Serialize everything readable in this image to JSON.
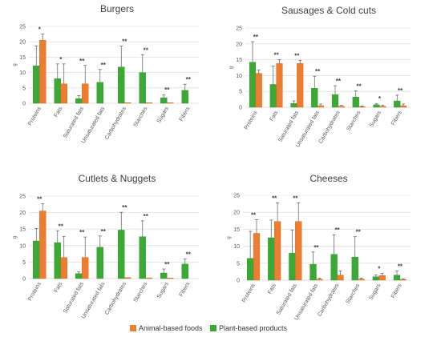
{
  "colors": {
    "animal": "#ed7d31",
    "plant": "#3aaa35",
    "grid": "#d9d9d9",
    "axis": "#bfbfbf",
    "error": "#595959"
  },
  "legend": {
    "animal_label": "Animal-based foods",
    "plant_label": "Plant-based products"
  },
  "chart_data": [
    {
      "type": "bar",
      "title": "Burgers",
      "ylabel": "g",
      "ylim": [
        0,
        25
      ],
      "yticks": [
        0,
        5,
        10,
        15,
        20,
        25
      ],
      "categories": [
        "Proteins",
        "Fats",
        "Saturated fats",
        "Unsaturated fats",
        "Carbohydrates",
        "Starches",
        "Sugars",
        "Fibers"
      ],
      "series": [
        {
          "name": "Plant-based products",
          "values": [
            12.2,
            8.0,
            1.5,
            6.8,
            11.8,
            10.0,
            1.8,
            4.2
          ],
          "errors": [
            6.5,
            4.8,
            1.0,
            4.2,
            6.8,
            5.8,
            1.0,
            2.0
          ]
        },
        {
          "name": "Animal-based foods",
          "values": [
            20.5,
            6.3,
            6.3,
            0,
            0.2,
            0.2,
            0.2,
            0
          ],
          "errors": [
            2.0,
            6.5,
            6.0,
            0,
            0,
            0,
            0,
            0
          ]
        }
      ],
      "significance": [
        "*",
        "*",
        "**",
        "**",
        "**",
        "**",
        "**",
        "**"
      ]
    },
    {
      "type": "bar",
      "title": "Sausages & Cold cuts",
      "ylabel": "g",
      "ylim": [
        0,
        25
      ],
      "yticks": [
        0,
        5,
        10,
        15,
        20,
        25
      ],
      "categories": [
        "Proteins",
        "Fats",
        "Saturated fats",
        "Unsaturated fats",
        "Carbohydrates",
        "Starches",
        "Sugars",
        "Fibers"
      ],
      "series": [
        {
          "name": "Plant-based products",
          "values": [
            14.2,
            7.2,
            1.2,
            6.0,
            4.0,
            3.2,
            0.8,
            2.0
          ],
          "errors": [
            6.5,
            5.8,
            0.8,
            3.8,
            2.8,
            2.0,
            0.4,
            1.8
          ]
        },
        {
          "name": "Animal-based foods",
          "values": [
            10.7,
            13.8,
            13.8,
            0.5,
            0.3,
            0.2,
            0.3,
            0.5
          ],
          "errors": [
            1.0,
            1.2,
            1.0,
            0.5,
            0.3,
            0.2,
            0.3,
            0.5
          ]
        }
      ],
      "significance": [
        "**",
        "**",
        "**",
        "**",
        "**",
        "**",
        "*",
        "**"
      ]
    },
    {
      "type": "bar",
      "title": "Cutlets & Nuggets",
      "ylabel": "g",
      "ylim": [
        0,
        25
      ],
      "yticks": [
        0,
        5,
        10,
        15,
        20,
        25
      ],
      "categories": [
        "Proteins",
        "Fats",
        "Saturated fats",
        "Unsaturated fats",
        "Carbohydrates",
        "Starches",
        "Sugars",
        "Fibers"
      ],
      "series": [
        {
          "name": "Plant-based products",
          "values": [
            11.4,
            10.9,
            1.5,
            9.5,
            14.7,
            12.7,
            1.7,
            4.4
          ],
          "errors": [
            3.8,
            3.6,
            0.5,
            3.4,
            5.4,
            4.8,
            1.2,
            1.5
          ]
        },
        {
          "name": "Animal-based foods",
          "values": [
            20.5,
            6.4,
            6.4,
            0,
            0.3,
            0.2,
            0.2,
            0
          ],
          "errors": [
            2.2,
            6.4,
            6.2,
            0,
            0,
            0,
            0,
            0
          ]
        }
      ],
      "significance": [
        "**",
        "**",
        "**",
        "**",
        "**",
        "**",
        "**",
        "**"
      ]
    },
    {
      "type": "bar",
      "title": "Cheeses",
      "ylabel": "g",
      "ylim": [
        0,
        25
      ],
      "yticks": [
        0,
        5,
        10,
        15,
        20,
        25
      ],
      "categories": [
        "Proteins",
        "Fats",
        "Saturated fats",
        "Unsaturated fats",
        "Carbohydrates",
        "Starches",
        "Sugars",
        "Fibers"
      ],
      "series": [
        {
          "name": "Plant-based products",
          "values": [
            6.4,
            12.5,
            8.0,
            4.7,
            7.6,
            6.8,
            1.0,
            1.5
          ],
          "errors": [
            8.0,
            5.2,
            6.8,
            3.6,
            5.8,
            6.0,
            0.5,
            1.2
          ]
        },
        {
          "name": "Animal-based foods",
          "values": [
            13.8,
            17.3,
            17.3,
            0.3,
            1.5,
            0.3,
            1.4,
            0.2
          ],
          "errors": [
            4.0,
            5.5,
            5.5,
            0.3,
            1.2,
            0.3,
            0.6,
            0.2
          ]
        }
      ],
      "significance": [
        "**",
        "**",
        "**",
        "**",
        "**",
        "**",
        "*",
        "**"
      ]
    }
  ]
}
